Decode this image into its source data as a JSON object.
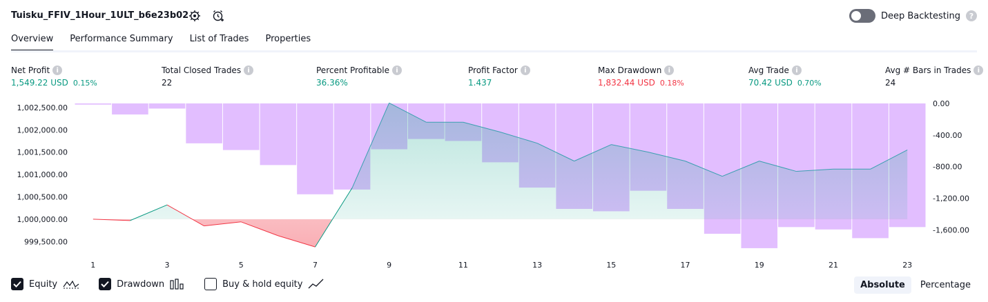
{
  "header": {
    "title": "Tuisku_FFIV_1Hour_1ULT_b6e23b02",
    "deep_backtesting_label": "Deep Backtesting",
    "help_glyph": "?"
  },
  "tabs": [
    {
      "label": "Overview",
      "active": true
    },
    {
      "label": "Performance Summary",
      "active": false
    },
    {
      "label": "List of Trades",
      "active": false
    },
    {
      "label": "Properties",
      "active": false
    }
  ],
  "metrics": [
    {
      "label": "Net Profit",
      "value": "1,549.22 USD",
      "pct": "0.15%",
      "color": "#089981"
    },
    {
      "label": "Total Closed Trades",
      "value": "22",
      "pct": "",
      "color": "#131722"
    },
    {
      "label": "Percent Profitable",
      "value": "36.36%",
      "pct": "",
      "color": "#089981"
    },
    {
      "label": "Profit Factor",
      "value": "1.437",
      "pct": "",
      "color": "#089981"
    },
    {
      "label": "Max Drawdown",
      "value": "1,832.44 USD",
      "pct": "0.18%",
      "color": "#f23645"
    },
    {
      "label": "Avg Trade",
      "value": "70.42 USD",
      "pct": "0.70%",
      "color": "#089981"
    },
    {
      "label": "Avg # Bars in Trades",
      "value": "24",
      "pct": "",
      "color": "#131722"
    }
  ],
  "chart_data": {
    "type": "line",
    "left_axis": {
      "ticks": [
        "1,002,500.00",
        "1,002,000.00",
        "1,001,500.00",
        "1,001,000.00",
        "1,000,500.00",
        "1,000,000.00",
        "999,500.00"
      ],
      "range": [
        999320,
        1002590
      ]
    },
    "right_axis": {
      "ticks": [
        "0.00",
        "-400.00",
        "-800.00",
        "-1,200.00",
        "-1,600.00"
      ],
      "range": [
        -1850,
        0
      ]
    },
    "x_ticks": [
      "1",
      "3",
      "5",
      "7",
      "9",
      "11",
      "13",
      "15",
      "17",
      "19",
      "21",
      "23"
    ],
    "baseline": 1000000,
    "series": [
      {
        "name": "Equity",
        "x": [
          1,
          2,
          3,
          4,
          5,
          6,
          7,
          8,
          9,
          10,
          11,
          12,
          13,
          14,
          15,
          16,
          17,
          18,
          19,
          20,
          21,
          22,
          23
        ],
        "values": [
          1000000,
          999970,
          1000320,
          999850,
          999940,
          999630,
          999380,
          1000700,
          1002600,
          1002170,
          1002170,
          1001950,
          1001700,
          1001300,
          1001670,
          1001500,
          1001300,
          1000960,
          1001300,
          1001070,
          1001120,
          1001120,
          1001550
        ]
      },
      {
        "name": "Drawdown",
        "type": "bar",
        "x": [
          1,
          2,
          3,
          4,
          5,
          6,
          7,
          8,
          9,
          10,
          11,
          12,
          13,
          14,
          15,
          16,
          17,
          18,
          19,
          20,
          21,
          22,
          23
        ],
        "values": [
          -15,
          -140,
          -65,
          -505,
          -590,
          -780,
          -1150,
          -1090,
          -580,
          -450,
          -475,
          -745,
          -1065,
          -1335,
          -1365,
          -1105,
          -1335,
          -1650,
          -1832,
          -1565,
          -1595,
          -1705,
          -1565
        ]
      }
    ],
    "colors": {
      "equity_up": "#089981",
      "equity_down": "#f23645",
      "drawdown": "#ce93ff",
      "line_above": "#3aa0b0"
    }
  },
  "legend": {
    "items": [
      {
        "label": "Equity",
        "checked": true,
        "icon": "equity-line-icon"
      },
      {
        "label": "Drawdown",
        "checked": true,
        "icon": "drawdown-bars-icon"
      },
      {
        "label": "Buy & hold equity",
        "checked": false,
        "icon": "buy-hold-line-icon"
      }
    ]
  },
  "view_mode": {
    "options": [
      "Absolute",
      "Percentage"
    ],
    "selected": "Absolute"
  }
}
